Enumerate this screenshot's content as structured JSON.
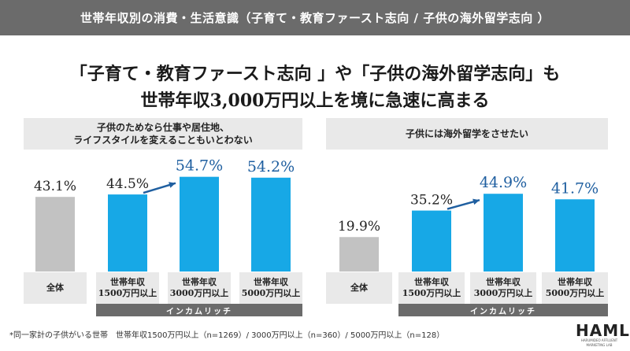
{
  "header": {
    "title": "世帯年収別の消費・生活意識（子育て・教育ファースト志向 / 子供の海外留学志向 ）"
  },
  "headline": {
    "line1": "「子育て・教育ファースト志向 」や「子供の海外留学志向」も",
    "line2": "世帯年収3,000万円以上を境に急速に高まる"
  },
  "colors": {
    "total_bar": "#c2c2c2",
    "income_bar": "#17a8e6",
    "highlight_label": "#1f5fa0",
    "normal_label": "#222222",
    "arrow": "#1f5fa0"
  },
  "chart_data": [
    {
      "type": "bar",
      "title_line1": "子供のためなら仕事や居住地、",
      "title_line2": "ライフスタイルを変えることもいとわない",
      "categories": [
        {
          "line1": "全体",
          "line2": ""
        },
        {
          "line1": "世帯年収",
          "line2": "1500万円以上"
        },
        {
          "line1": "世帯年収",
          "line2": "3000万円以上"
        },
        {
          "line1": "世帯年収",
          "line2": "5000万円以上"
        }
      ],
      "values": [
        43.1,
        44.5,
        54.7,
        54.2
      ],
      "labels": [
        "43.1%",
        "44.5%",
        "54.7%",
        "54.2%"
      ],
      "highlighted": [
        false,
        false,
        true,
        true
      ],
      "group_label": "インカムリッチ",
      "arrow": {
        "from": 1,
        "to": 2
      }
    },
    {
      "type": "bar",
      "title_line1": "子供には海外留学をさせたい",
      "title_line2": "",
      "categories": [
        {
          "line1": "全体",
          "line2": ""
        },
        {
          "line1": "世帯年収",
          "line2": "1500万円以上"
        },
        {
          "line1": "世帯年収",
          "line2": "3000万円以上"
        },
        {
          "line1": "世帯年収",
          "line2": "5000万円以上"
        }
      ],
      "values": [
        19.9,
        35.2,
        44.9,
        41.7
      ],
      "labels": [
        "19.9%",
        "35.2%",
        "44.9%",
        "41.7%"
      ],
      "highlighted": [
        false,
        false,
        true,
        true
      ],
      "group_label": "インカムリッチ",
      "arrow": {
        "from": 1,
        "to": 2
      }
    }
  ],
  "footnote": "*同一家計の子供がいる世帯　世帯年収1500万円以上（n=1269）/ 3000万円以上（n=360）/ 5000万円以上（n=128）",
  "logo": {
    "main": "HAML",
    "sub": "HARUMIDEO AFFLUENT MARKETING LAB"
  }
}
